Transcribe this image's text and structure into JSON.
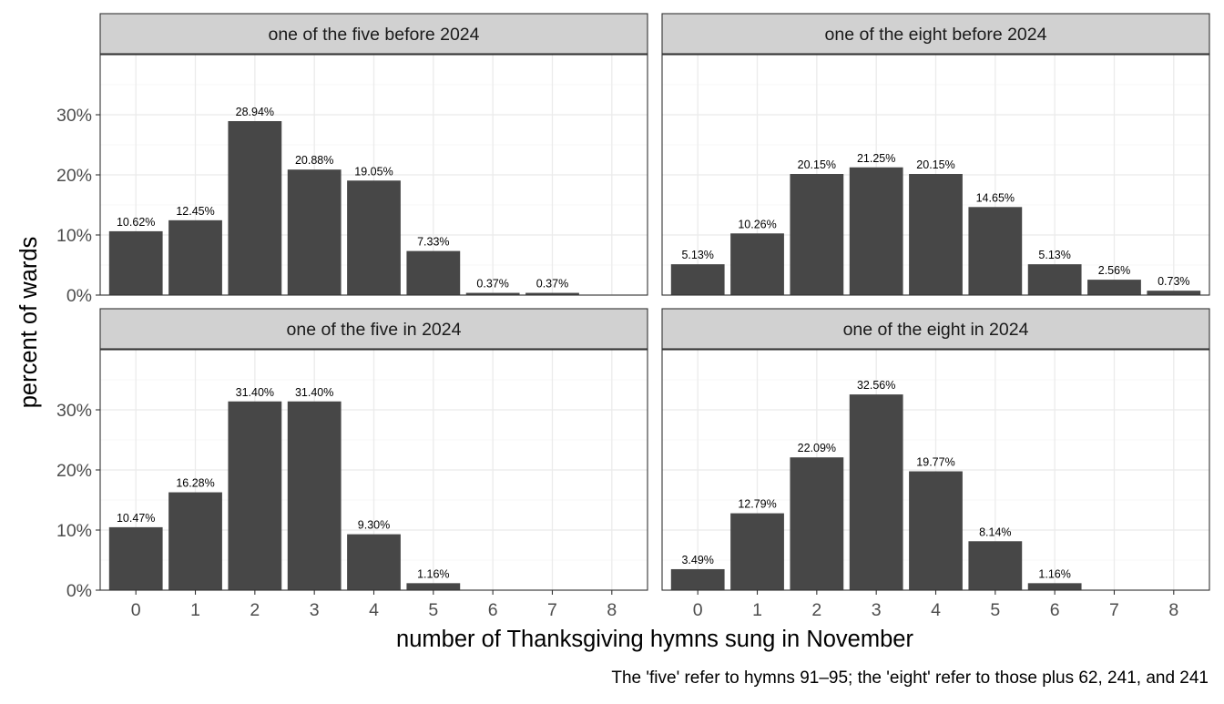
{
  "chart_data": {
    "type": "bar",
    "xlabel": "number of Thanksgiving hymns sung in November",
    "ylabel": "percent of wards",
    "caption": "The 'five' refer to hymns 91–95; the 'eight' refer to those plus 62, 241, and 241",
    "ylim": [
      0,
      0.4
    ],
    "yticks": [
      0,
      0.1,
      0.2,
      0.3
    ],
    "ytick_labels": [
      "0%",
      "10%",
      "20%",
      "30%"
    ],
    "categories": [
      "0",
      "1",
      "2",
      "3",
      "4",
      "5",
      "6",
      "7",
      "8"
    ],
    "grid": true,
    "colors": {
      "bar": "#474747",
      "strip": "#d1d1d1",
      "grid_major": "#ebebeb",
      "grid_minor": "#f4f4f4",
      "border": "#333333",
      "text": "#1a1a1a",
      "axis_text": "#4d4d4d"
    },
    "panels": [
      {
        "title": "one of the five before 2024",
        "values": [
          0.1062,
          0.1245,
          0.2894,
          0.2088,
          0.1905,
          0.0733,
          0.0037,
          0.0037,
          null
        ],
        "labels": [
          "10.62%",
          "12.45%",
          "28.94%",
          "20.88%",
          "19.05%",
          "7.33%",
          "0.37%",
          "0.37%",
          ""
        ]
      },
      {
        "title": "one of the eight before 2024",
        "values": [
          0.0513,
          0.1026,
          0.2015,
          0.2125,
          0.2015,
          0.1465,
          0.0513,
          0.0256,
          0.0073
        ],
        "labels": [
          "5.13%",
          "10.26%",
          "20.15%",
          "21.25%",
          "20.15%",
          "14.65%",
          "5.13%",
          "2.56%",
          "0.73%"
        ]
      },
      {
        "title": "one of the five in 2024",
        "values": [
          0.1047,
          0.1628,
          0.314,
          0.314,
          0.093,
          0.0116,
          null,
          null,
          null
        ],
        "labels": [
          "10.47%",
          "16.28%",
          "31.40%",
          "31.40%",
          "9.30%",
          "1.16%",
          "",
          "",
          ""
        ]
      },
      {
        "title": "one of the eight in 2024",
        "values": [
          0.0349,
          0.1279,
          0.2209,
          0.3256,
          0.1977,
          0.0814,
          0.0116,
          null,
          null
        ],
        "labels": [
          "3.49%",
          "12.79%",
          "22.09%",
          "32.56%",
          "19.77%",
          "8.14%",
          "1.16%",
          "",
          ""
        ]
      }
    ]
  }
}
